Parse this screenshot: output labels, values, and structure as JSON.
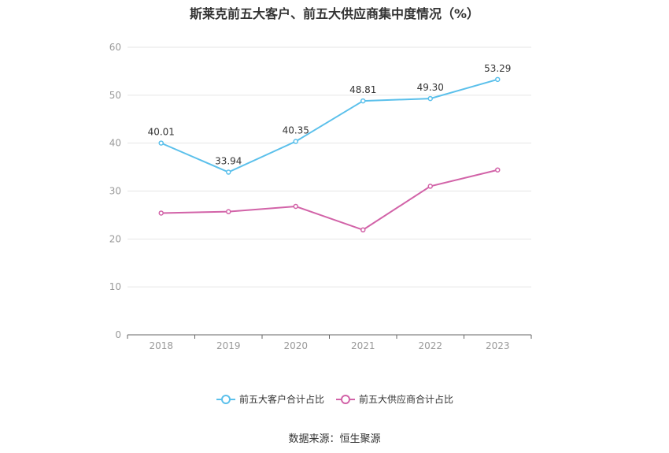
{
  "chart_data": {
    "type": "line",
    "title": "斯莱克前五大客户、前五大供应商集中度情况（%）",
    "categories": [
      "2018",
      "2019",
      "2020",
      "2021",
      "2022",
      "2023"
    ],
    "ylim": [
      0,
      60
    ],
    "yticks": [
      0,
      10,
      20,
      30,
      40,
      50,
      60
    ],
    "grid": true,
    "legend_position": "bottom",
    "series": [
      {
        "name": "前五大客户合计占比",
        "color": "#5bc0eb",
        "values": [
          40.01,
          33.94,
          40.35,
          48.81,
          49.3,
          53.29
        ],
        "labels": [
          "40.01",
          "33.94",
          "40.35",
          "48.81",
          "49.30",
          "53.29"
        ]
      },
      {
        "name": "前五大供应商合计占比",
        "color": "#d263a8",
        "values": [
          25.4,
          25.7,
          26.8,
          21.9,
          31.0,
          34.4
        ],
        "labels": null
      }
    ]
  },
  "source": "数据来源：恒生聚源"
}
